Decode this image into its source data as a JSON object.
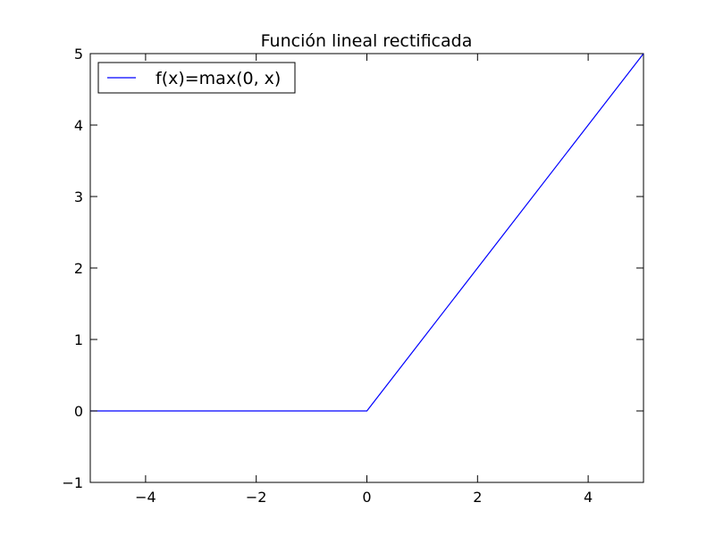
{
  "chart_data": {
    "type": "line",
    "title": "Función lineal rectificada",
    "xlabel": "",
    "ylabel": "",
    "xlim": [
      -5,
      5
    ],
    "ylim": [
      -1,
      5
    ],
    "x_ticks": [
      -4,
      -2,
      0,
      2,
      4
    ],
    "y_ticks": [
      -1,
      0,
      1,
      2,
      3,
      4,
      5
    ],
    "x_tick_labels": [
      "−4",
      "−2",
      "0",
      "2",
      "4"
    ],
    "y_tick_labels": [
      "−1",
      "0",
      "1",
      "2",
      "3",
      "4",
      "5"
    ],
    "grid": false,
    "legend_position": "top-left",
    "series": [
      {
        "name": "f(x)=max(0, x)",
        "color": "#0000ff",
        "x": [
          -5,
          0,
          5
        ],
        "y": [
          0,
          0,
          5
        ]
      }
    ]
  }
}
